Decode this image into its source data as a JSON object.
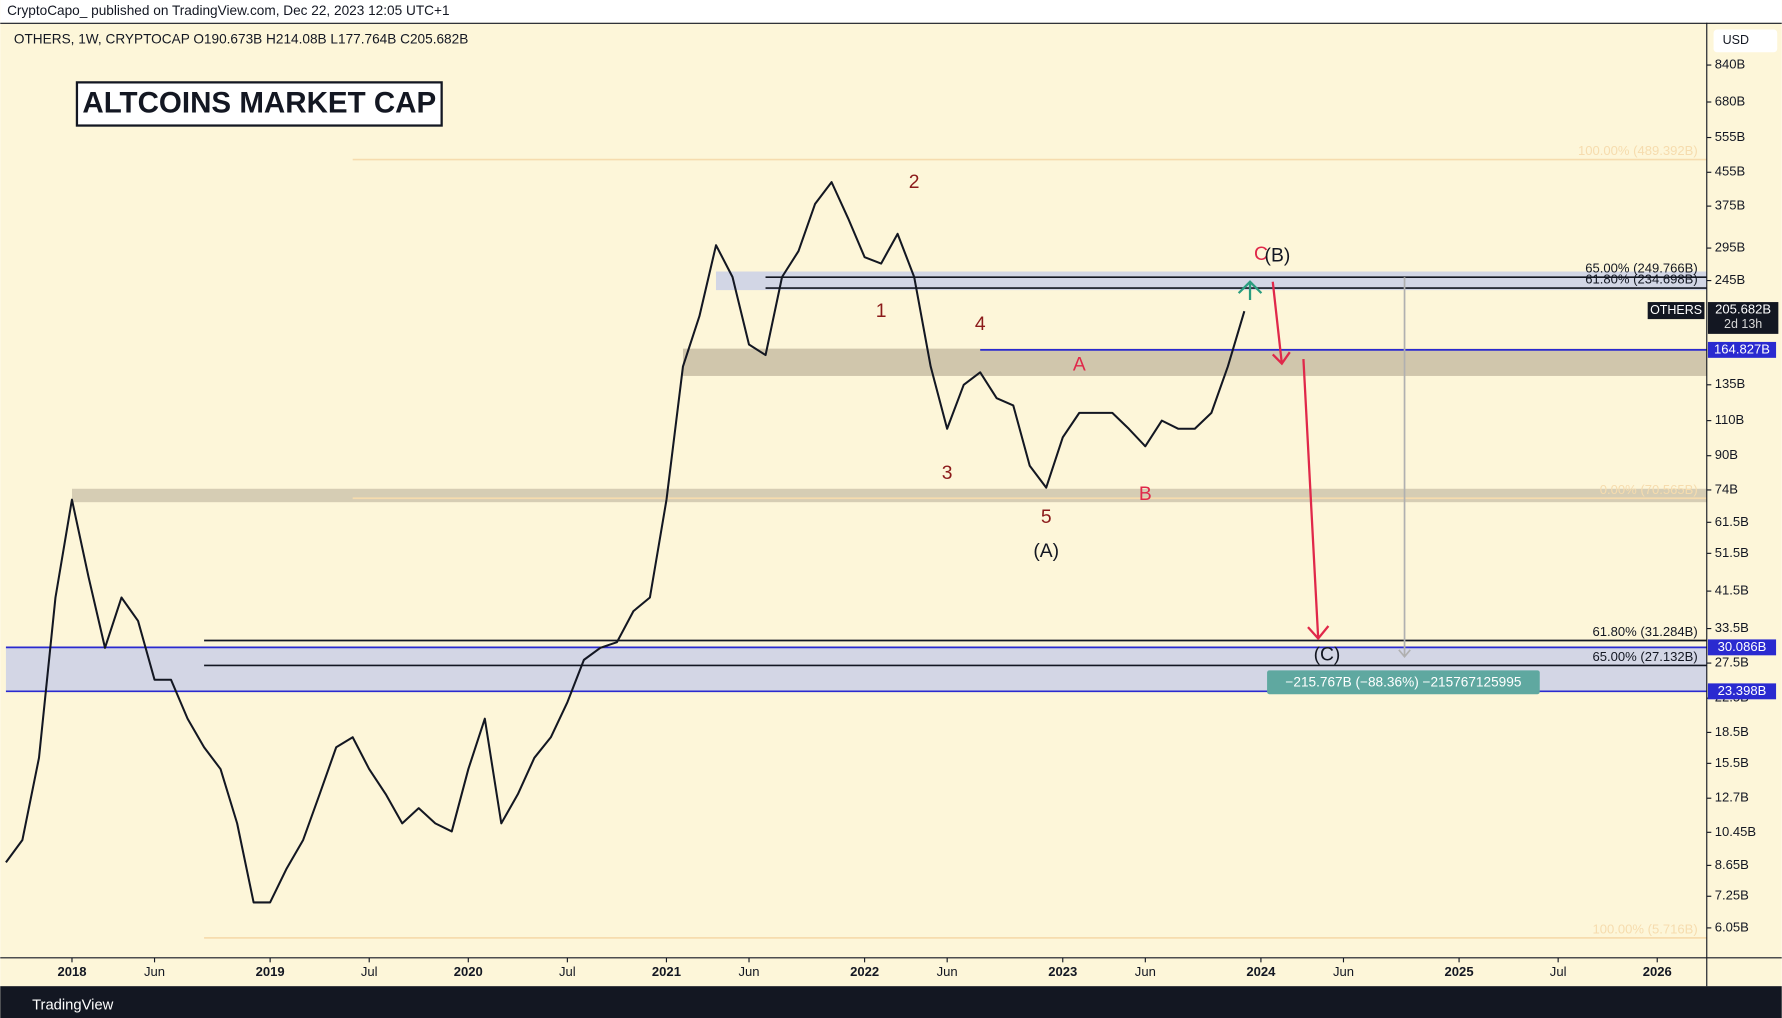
{
  "header": "CryptoCapo_ published on TradingView.com, Dec 22, 2023 12:05 UTC+1",
  "footer": "TradingView",
  "currency": "USD",
  "chart_data": {
    "type": "line",
    "title": "ALTCOINS MARKET CAP",
    "legend_text": "OTHERS, 1W, CRYPTOCAP  O190.673B  H214.08B  L177.764B  C205.682B",
    "log_scale": true,
    "grid": false,
    "x": [
      "2017-09",
      "2017-10",
      "2017-11",
      "2017-12",
      "2018-01",
      "2018-02",
      "2018-03",
      "2018-04",
      "2018-05",
      "2018-06",
      "2018-07",
      "2018-08",
      "2018-09",
      "2018-10",
      "2018-11",
      "2018-12",
      "2019-01",
      "2019-02",
      "2019-03",
      "2019-04",
      "2019-05",
      "2019-06",
      "2019-07",
      "2019-08",
      "2019-09",
      "2019-10",
      "2019-11",
      "2019-12",
      "2020-01",
      "2020-02",
      "2020-03",
      "2020-04",
      "2020-05",
      "2020-06",
      "2020-07",
      "2020-08",
      "2020-09",
      "2020-10",
      "2020-11",
      "2020-12",
      "2021-01",
      "2021-02",
      "2021-03",
      "2021-04",
      "2021-05",
      "2021-06",
      "2021-07",
      "2021-08",
      "2021-09",
      "2021-10",
      "2021-11",
      "2021-12",
      "2022-01",
      "2022-02",
      "2022-03",
      "2022-04",
      "2022-05",
      "2022-06",
      "2022-07",
      "2022-08",
      "2022-09",
      "2022-10",
      "2022-11",
      "2022-12",
      "2023-01",
      "2023-02",
      "2023-03",
      "2023-04",
      "2023-05",
      "2023-06",
      "2023-07",
      "2023-08",
      "2023-09",
      "2023-10",
      "2023-11",
      "2023-12"
    ],
    "series": [
      {
        "name": "OTHERS",
        "color": "#131722",
        "values": [
          8.8,
          10,
          16,
          40,
          70,
          45,
          30,
          40,
          35,
          25,
          25,
          20,
          17,
          15,
          11,
          7,
          7,
          8.5,
          10,
          13,
          17,
          18,
          15,
          13,
          11,
          12,
          11,
          10.5,
          15,
          20,
          11,
          13,
          16,
          18,
          22,
          28,
          30,
          31,
          37,
          40,
          70,
          150,
          200,
          300,
          250,
          170,
          160,
          250,
          290,
          380,
          430,
          350,
          280,
          270,
          320,
          250,
          150,
          105,
          135,
          145,
          125,
          120,
          85,
          75,
          100,
          115,
          115,
          115,
          105,
          95,
          110,
          105,
          105,
          115,
          150,
          205.682
        ]
      }
    ],
    "xlim": [
      "2017-09",
      "2026-04"
    ],
    "xticks": [
      {
        "value": "2018-01",
        "label": "2018"
      },
      {
        "value": "2018-06",
        "label": "Jun"
      },
      {
        "value": "2019-01",
        "label": "2019"
      },
      {
        "value": "2019-07",
        "label": "Jul"
      },
      {
        "value": "2020-01",
        "label": "2020"
      },
      {
        "value": "2020-07",
        "label": "Jul"
      },
      {
        "value": "2021-01",
        "label": "2021"
      },
      {
        "value": "2021-06",
        "label": "Jun"
      },
      {
        "value": "2022-01",
        "label": "2022"
      },
      {
        "value": "2022-06",
        "label": "Jun"
      },
      {
        "value": "2023-01",
        "label": "2023"
      },
      {
        "value": "2023-06",
        "label": "Jun"
      },
      {
        "value": "2024-01",
        "label": "2024"
      },
      {
        "value": "2024-06",
        "label": "Jun"
      },
      {
        "value": "2025-01",
        "label": "2025"
      },
      {
        "value": "2025-07",
        "label": "Jul"
      },
      {
        "value": "2026-01",
        "label": "2026"
      }
    ],
    "ylim": [
      5.1,
      1070
    ],
    "yticks": [
      {
        "value": 840,
        "label": "840B"
      },
      {
        "value": 680,
        "label": "680B"
      },
      {
        "value": 555,
        "label": "555B"
      },
      {
        "value": 455,
        "label": "455B"
      },
      {
        "value": 375,
        "label": "375B"
      },
      {
        "value": 295,
        "label": "295B"
      },
      {
        "value": 245,
        "label": "245B"
      },
      {
        "value": 135,
        "label": "135B"
      },
      {
        "value": 110,
        "label": "110B"
      },
      {
        "value": 90,
        "label": "90B"
      },
      {
        "value": 74,
        "label": "74B"
      },
      {
        "value": 61.5,
        "label": "61.5B"
      },
      {
        "value": 51.5,
        "label": "51.5B"
      },
      {
        "value": 41.5,
        "label": "41.5B"
      },
      {
        "value": 33.5,
        "label": "33.5B"
      },
      {
        "value": 27.5,
        "label": "27.5B"
      },
      {
        "value": 22.5,
        "label": "22.5B"
      },
      {
        "value": 18.5,
        "label": "18.5B"
      },
      {
        "value": 15.5,
        "label": "15.5B"
      },
      {
        "value": 12.7,
        "label": "12.7B"
      },
      {
        "value": 10.45,
        "label": "10.45B"
      },
      {
        "value": 8.65,
        "label": "8.65B"
      },
      {
        "value": 7.25,
        "label": "7.25B"
      },
      {
        "value": 6.05,
        "label": "6.05B"
      }
    ],
    "zones": [
      {
        "low": 232,
        "high": 258,
        "start": "2021-04",
        "color": "#cdd3e6"
      },
      {
        "low": 142,
        "high": 166,
        "start": "2021-02",
        "color": "#cbc1a6"
      },
      {
        "low": 69,
        "high": 74.5,
        "start": "2018-01",
        "color": "#d2c9af"
      },
      {
        "low": 23.398,
        "high": 30.086,
        "start": "2017-09",
        "color": "#ced3e6"
      }
    ],
    "fib_levels": [
      {
        "value": 489.392,
        "label": "100.00% (489.392B)",
        "start": "2019-06",
        "color": "#f6dcae"
      },
      {
        "value": 249.766,
        "label": "65.00% (249.766B)",
        "start": "2021-07",
        "color": "#131722"
      },
      {
        "value": 234.698,
        "label": "61.80% (234.698B)",
        "start": "2021-07",
        "color": "#131722"
      },
      {
        "value": 70.565,
        "label": "0.00% (70.565B)",
        "start": "2019-06",
        "color": "#f6dcae"
      },
      {
        "value": 31.284,
        "label": "61.80% (31.284B)",
        "start": "2018-09",
        "color": "#131722"
      },
      {
        "value": 27.132,
        "label": "65.00% (27.132B)",
        "start": "2018-09",
        "color": "#131722"
      },
      {
        "value": 5.716,
        "label": "100.00% (5.716B)",
        "start": "2018-09",
        "color": "#f6dcae"
      }
    ],
    "levels": [
      {
        "value": 164.827,
        "label": "164.827B",
        "start": "2022-08",
        "color": "#2a2ad0"
      },
      {
        "value": 30.086,
        "label": "30.086B",
        "start": "2017-09",
        "color": "#2a2ad0"
      },
      {
        "value": 23.398,
        "label": "23.398B",
        "start": "2017-09",
        "color": "#2a2ad0"
      }
    ],
    "last_price": {
      "value": 205.682,
      "label": "205.682B",
      "name": "OTHERS",
      "countdown": "2d 13h"
    },
    "annotations": [
      {
        "text": "2",
        "x": "2022-04",
        "y": 428,
        "color": "#8b1a1a"
      },
      {
        "text": "1",
        "x": "2022-02",
        "y": 205,
        "color": "#8b1a1a"
      },
      {
        "text": "4",
        "x": "2022-08",
        "y": 190,
        "color": "#8b1a1a"
      },
      {
        "text": "3",
        "x": "2022-06",
        "y": 81,
        "color": "#8b1a1a"
      },
      {
        "text": "5",
        "x": "2022-12",
        "y": 63,
        "color": "#8b1a1a"
      },
      {
        "text": "(A)",
        "x": "2022-12",
        "y": 52,
        "color": "#131722"
      },
      {
        "text": "A",
        "x": "2023-02",
        "y": 151,
        "color": "#e0284a"
      },
      {
        "text": "B",
        "x": "2023-06",
        "y": 72,
        "color": "#e0284a"
      },
      {
        "text": "C",
        "x": "2024-01",
        "y": 284,
        "color": "#e0284a"
      },
      {
        "text": "(B)",
        "x": "2024-02",
        "y": 281,
        "color": "#131722"
      },
      {
        "text": "(C)",
        "x": "2024-05",
        "y": 28.7,
        "color": "#131722"
      }
    ],
    "measure": "−215.767B (−88.36%) −215767125995"
  }
}
